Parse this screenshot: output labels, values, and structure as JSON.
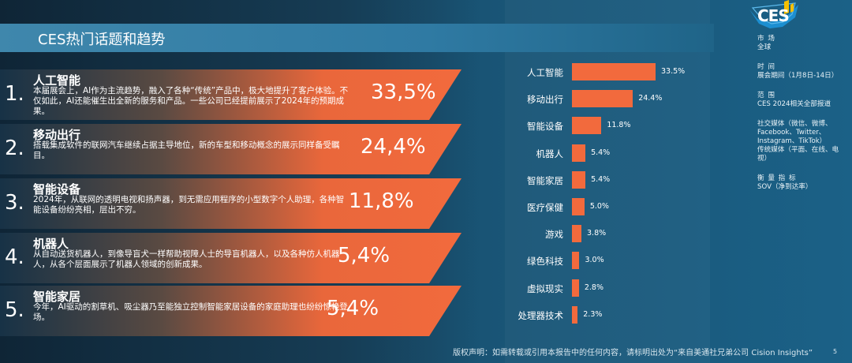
{
  "header": {
    "title": "CES热门话题和趋势"
  },
  "logo": {
    "text": "CES"
  },
  "info": [
    {
      "label": "市 场",
      "value": "全球"
    },
    {
      "label": "时 间",
      "value": "展会期间（1月8日-14日）"
    },
    {
      "label": "范 围",
      "value": "CES 2024相关全部报道"
    },
    {
      "label": "",
      "value": "社交媒体（微信、微博、Facebook、Twitter、Instagram、TikTok）"
    },
    {
      "label": "",
      "value": "传统媒体（平面、在线、电视）"
    },
    {
      "label": "衡 量 指 标",
      "value": "SOV（净到达率）"
    }
  ],
  "topics": [
    {
      "num": "1.",
      "head": "人工智能",
      "desc": "本届展会上，AI作为主流趋势，融入了各种“传统”产品中，极大地提升了客户体验。不仅如此，AI还能催生出全新的服务和产品。一些公司已经提前展示了2024年的预期成果。",
      "pct": "33,5%"
    },
    {
      "num": "2.",
      "head": "移动出行",
      "desc": "搭载集成软件的联网汽车继续占据主导地位，新的车型和移动概念的展示同样备受瞩目。",
      "pct": "24,4%"
    },
    {
      "num": "3.",
      "head": "智能设备",
      "desc": "2024年，从联网的透明电视和扬声器，到无需应用程序的小型数字个人助理，各种智能设备纷纷亮相，层出不穷。",
      "pct": "11,8%"
    },
    {
      "num": "4.",
      "head": "机器人",
      "desc": "从自动送货机器人，到像导盲犬一样帮助视障人士的导盲机器人，以及各种仿人机器人，从各个层面展示了机器人领域的创新成果。",
      "pct": "5,4%"
    },
    {
      "num": "5.",
      "head": "智能家居",
      "desc": "今年，AI驱动的割草机、吸尘器乃至能独立控制智能家居设备的家庭助理也纷纷惊艳登场。",
      "pct": "5,4%"
    }
  ],
  "chart_data": {
    "type": "bar",
    "orientation": "horizontal",
    "categories": [
      "人工智能",
      "移动出行",
      "智能设备",
      "机器人",
      "智能家居",
      "医疗保健",
      "游戏",
      "绿色科技",
      "虚拟现实",
      "处理器技术"
    ],
    "values": [
      33.5,
      24.4,
      11.8,
      5.4,
      5.4,
      5.0,
      3.8,
      3.0,
      2.8,
      2.3
    ],
    "value_labels": [
      "33.5%",
      "24.4%",
      "11.8%",
      "5.4%",
      "5.4%",
      "5.0%",
      "3.8%",
      "3.0%",
      "2.8%",
      "2.3%"
    ],
    "bar_color": "#f26a3d"
  },
  "footer": {
    "text": "版权声明：如需转载或引用本报告中的任何内容，请标明出处为“来自美通社兄弟公司 Cision Insights”",
    "page": "5"
  }
}
